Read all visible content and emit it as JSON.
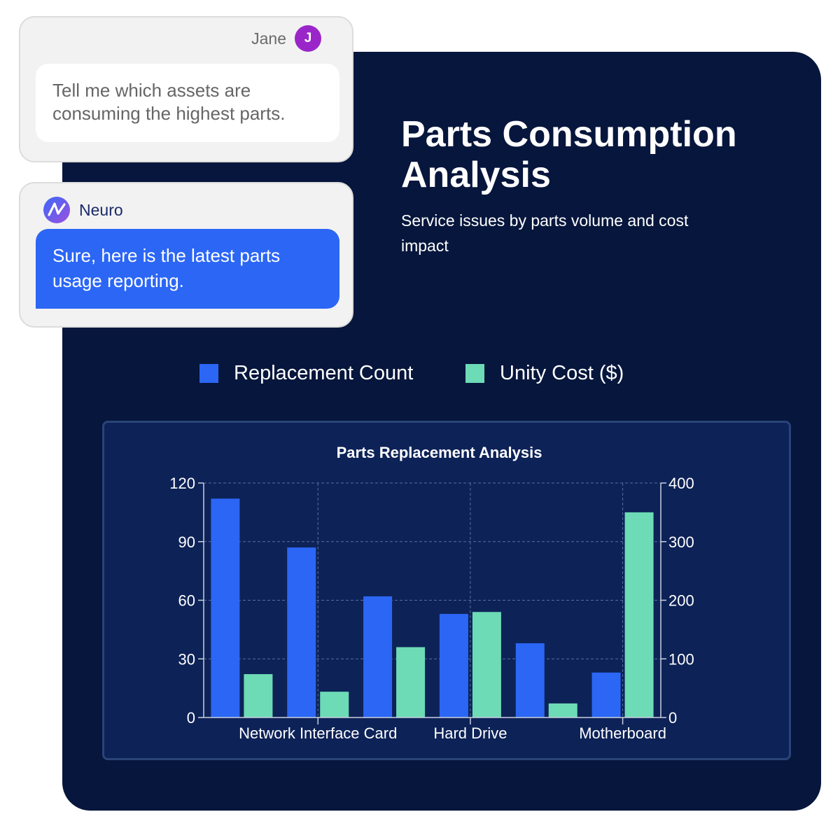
{
  "chat": {
    "user": {
      "name": "Jane",
      "avatar_initial": "J",
      "message": "Tell me which assets are consuming the highest parts."
    },
    "assistant": {
      "name": "Neuro",
      "message": "Sure, here is the latest parts usage reporting."
    }
  },
  "report": {
    "title": "Parts Consumption Analysis",
    "subtitle": "Service issues by parts volume and cost impact"
  },
  "legend": [
    {
      "label": "Replacement Count",
      "color": "#2b66f5"
    },
    {
      "label": "Unity Cost ($)",
      "color": "#6ddbb5"
    }
  ],
  "colors": {
    "background": "#06163c",
    "panel": "#0d2257",
    "user_avatar": "#9a26c9",
    "assistant_bubble": "#2b66f5"
  },
  "chart_data": {
    "type": "bar",
    "title": "Parts Replacement Analysis",
    "categories": [
      "",
      "Network Interface Card",
      "",
      "Hard Drive",
      "",
      "Motherboard"
    ],
    "series": [
      {
        "name": "Replacement Count",
        "axis": "left",
        "color": "#2b66f5",
        "values": [
          112,
          87,
          62,
          53,
          38,
          23
        ]
      },
      {
        "name": "Unity Cost ($)",
        "axis": "right",
        "color": "#6ddbb5",
        "values": [
          74,
          44,
          120,
          180,
          24,
          350
        ]
      }
    ],
    "y_left": {
      "lim": [
        0,
        120
      ],
      "ticks": [
        0,
        30,
        60,
        90,
        120
      ]
    },
    "y_right": {
      "lim": [
        0,
        400
      ],
      "ticks": [
        0,
        100,
        200,
        300,
        400
      ]
    },
    "grid": true,
    "legend_position": "top"
  }
}
